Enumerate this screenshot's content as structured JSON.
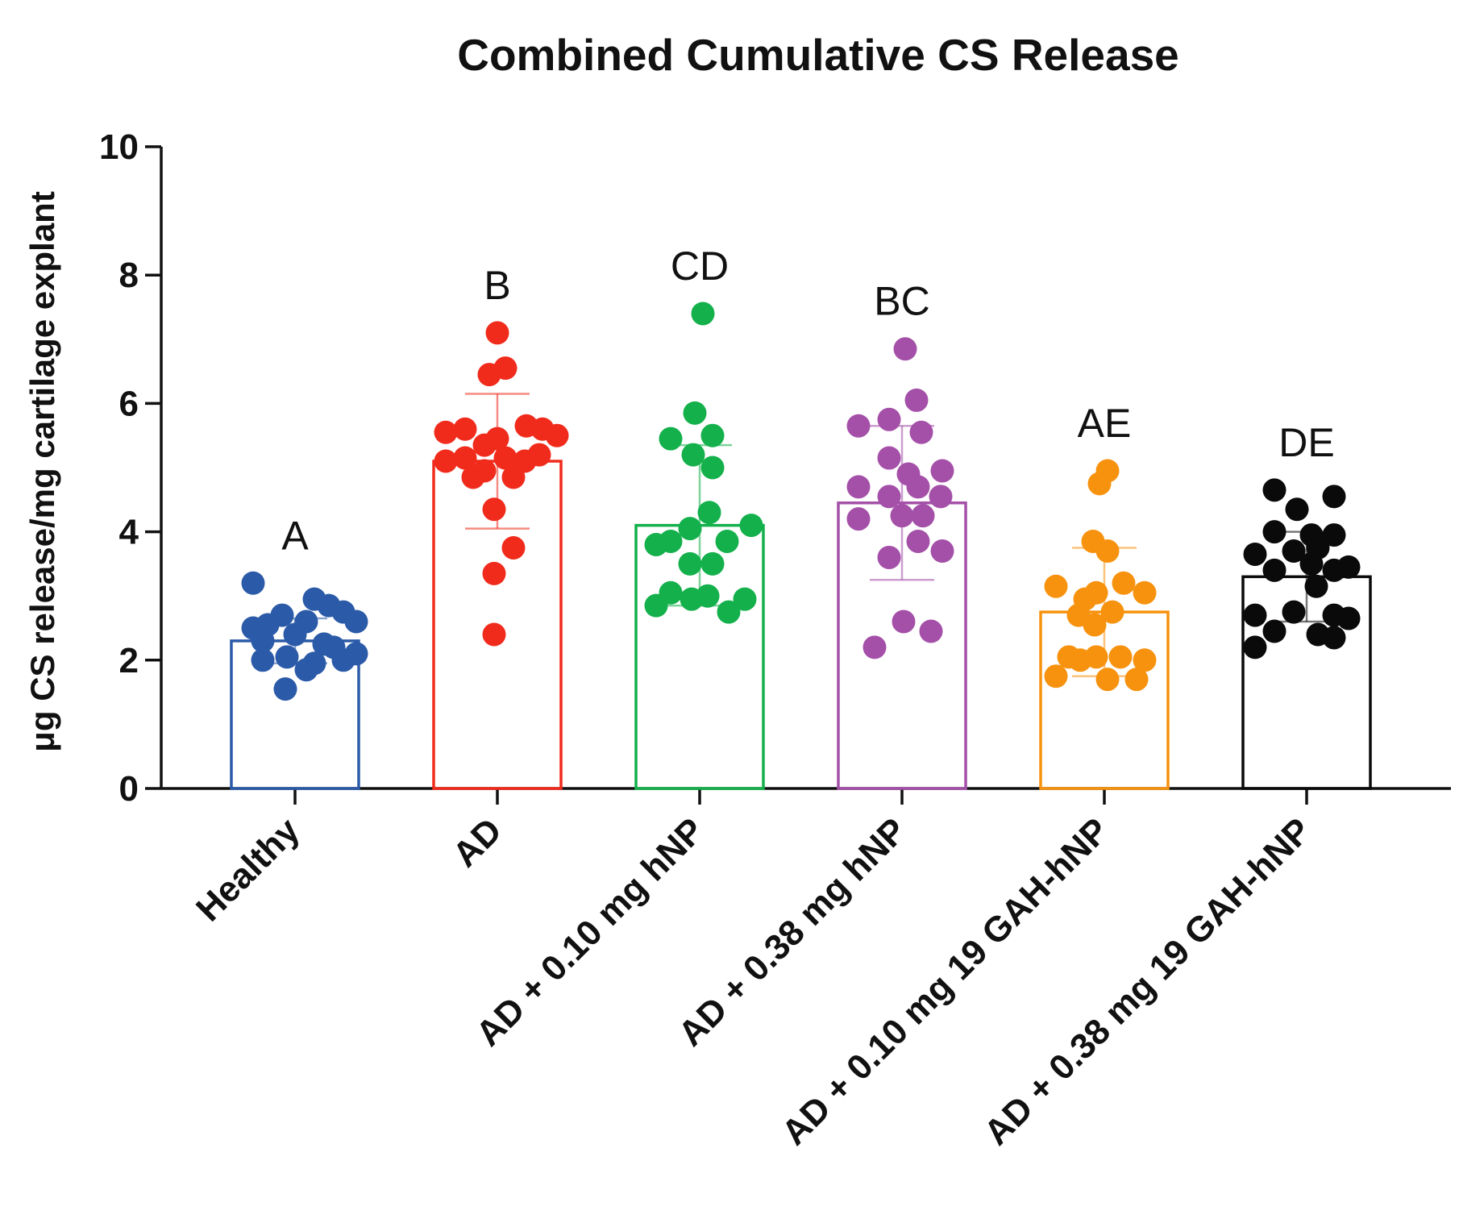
{
  "chart_data": {
    "type": "bar",
    "title": "Combined Cumulative CS Release",
    "xlabel": "",
    "ylabel": "μg CS release/mg cartilage explant",
    "ylim": [
      0,
      10
    ],
    "yticks": [
      0,
      2,
      4,
      6,
      8,
      10
    ],
    "grid": false,
    "legend": "none",
    "categories": [
      "Healthy",
      "AD",
      "AD + 0.10 mg hNP",
      "AD + 0.38 mg hNP",
      "AD + 0.10 mg 19 GAH-hNP",
      "AD + 0.38 mg 19 GAH-hNP"
    ],
    "series": [
      {
        "name": "Healthy",
        "color": "#2b5aa8",
        "mean": 2.3,
        "sd": 0.35,
        "letter": "A",
        "points": [
          {
            "x": -0.26,
            "y": 3.2
          },
          {
            "x": -0.26,
            "y": 2.5
          },
          {
            "x": -0.17,
            "y": 2.55
          },
          {
            "x": -0.08,
            "y": 2.7
          },
          {
            "x": 0.07,
            "y": 2.6
          },
          {
            "x": 0.12,
            "y": 2.95
          },
          {
            "x": 0.21,
            "y": 2.85
          },
          {
            "x": 0.3,
            "y": 2.75
          },
          {
            "x": 0.38,
            "y": 2.6
          },
          {
            "x": -0.2,
            "y": 2.3
          },
          {
            "x": 0.0,
            "y": 2.4
          },
          {
            "x": 0.24,
            "y": 2.2
          },
          {
            "x": -0.2,
            "y": 2.0
          },
          {
            "x": -0.05,
            "y": 2.05
          },
          {
            "x": 0.12,
            "y": 1.95
          },
          {
            "x": 0.3,
            "y": 2.0
          },
          {
            "x": 0.38,
            "y": 2.1
          },
          {
            "x": -0.06,
            "y": 1.55
          },
          {
            "x": 0.07,
            "y": 1.85
          },
          {
            "x": 0.18,
            "y": 2.25
          }
        ]
      },
      {
        "name": "AD",
        "color": "#f02b1c",
        "mean": 5.1,
        "sd": 1.05,
        "letter": "B",
        "points": [
          {
            "x": 0.0,
            "y": 7.1
          },
          {
            "x": -0.05,
            "y": 6.45
          },
          {
            "x": 0.05,
            "y": 6.55
          },
          {
            "x": -0.32,
            "y": 5.55
          },
          {
            "x": -0.2,
            "y": 5.6
          },
          {
            "x": -0.08,
            "y": 5.35
          },
          {
            "x": 0.0,
            "y": 5.45
          },
          {
            "x": 0.18,
            "y": 5.65
          },
          {
            "x": 0.28,
            "y": 5.6
          },
          {
            "x": 0.37,
            "y": 5.5
          },
          {
            "x": -0.32,
            "y": 5.1
          },
          {
            "x": -0.2,
            "y": 5.15
          },
          {
            "x": -0.08,
            "y": 4.95
          },
          {
            "x": 0.05,
            "y": 5.15
          },
          {
            "x": 0.17,
            "y": 5.1
          },
          {
            "x": 0.26,
            "y": 5.2
          },
          {
            "x": -0.15,
            "y": 4.85
          },
          {
            "x": 0.1,
            "y": 4.85
          },
          {
            "x": -0.02,
            "y": 4.35
          },
          {
            "x": 0.1,
            "y": 3.75
          },
          {
            "x": -0.02,
            "y": 3.35
          },
          {
            "x": -0.02,
            "y": 2.4
          }
        ]
      },
      {
        "name": "AD + 0.10 mg hNP",
        "color": "#13b04b",
        "mean": 4.1,
        "sd": 1.25,
        "letter": "CD",
        "points": [
          {
            "x": 0.02,
            "y": 7.4
          },
          {
            "x": -0.03,
            "y": 5.85
          },
          {
            "x": -0.18,
            "y": 5.45
          },
          {
            "x": 0.08,
            "y": 5.5
          },
          {
            "x": -0.04,
            "y": 5.2
          },
          {
            "x": 0.08,
            "y": 5.0
          },
          {
            "x": 0.06,
            "y": 4.3
          },
          {
            "x": 0.32,
            "y": 4.1
          },
          {
            "x": -0.06,
            "y": 4.05
          },
          {
            "x": -0.27,
            "y": 3.8
          },
          {
            "x": -0.18,
            "y": 3.85
          },
          {
            "x": 0.17,
            "y": 3.85
          },
          {
            "x": -0.06,
            "y": 3.5
          },
          {
            "x": 0.08,
            "y": 3.5
          },
          {
            "x": -0.18,
            "y": 3.05
          },
          {
            "x": 0.05,
            "y": 3.0
          },
          {
            "x": 0.28,
            "y": 2.95
          },
          {
            "x": -0.05,
            "y": 2.95
          },
          {
            "x": -0.27,
            "y": 2.85
          },
          {
            "x": 0.18,
            "y": 2.75
          }
        ]
      },
      {
        "name": "AD + 0.38 mg hNP",
        "color": "#a450a8",
        "mean": 4.45,
        "sd": 1.2,
        "letter": "BC",
        "points": [
          {
            "x": 0.02,
            "y": 6.85
          },
          {
            "x": 0.09,
            "y": 6.05
          },
          {
            "x": -0.27,
            "y": 5.65
          },
          {
            "x": -0.08,
            "y": 5.75
          },
          {
            "x": 0.12,
            "y": 5.55
          },
          {
            "x": -0.08,
            "y": 5.15
          },
          {
            "x": 0.04,
            "y": 4.9
          },
          {
            "x": 0.25,
            "y": 4.95
          },
          {
            "x": -0.27,
            "y": 4.7
          },
          {
            "x": -0.08,
            "y": 4.55
          },
          {
            "x": 0.1,
            "y": 4.7
          },
          {
            "x": 0.24,
            "y": 4.55
          },
          {
            "x": -0.27,
            "y": 4.2
          },
          {
            "x": 0.0,
            "y": 4.25
          },
          {
            "x": 0.13,
            "y": 4.25
          },
          {
            "x": 0.1,
            "y": 3.85
          },
          {
            "x": -0.08,
            "y": 3.6
          },
          {
            "x": 0.25,
            "y": 3.7
          },
          {
            "x": 0.01,
            "y": 2.6
          },
          {
            "x": 0.18,
            "y": 2.45
          },
          {
            "x": -0.17,
            "y": 2.2
          }
        ]
      },
      {
        "name": "AD + 0.10 mg 19 GAH-hNP",
        "color": "#f7920e",
        "mean": 2.75,
        "sd": 1.0,
        "letter": "AE",
        "points": [
          {
            "x": -0.03,
            "y": 4.75
          },
          {
            "x": 0.02,
            "y": 4.95
          },
          {
            "x": -0.07,
            "y": 3.85
          },
          {
            "x": 0.02,
            "y": 3.7
          },
          {
            "x": -0.3,
            "y": 3.15
          },
          {
            "x": -0.12,
            "y": 2.95
          },
          {
            "x": -0.05,
            "y": 3.05
          },
          {
            "x": 0.12,
            "y": 3.2
          },
          {
            "x": 0.25,
            "y": 3.05
          },
          {
            "x": -0.16,
            "y": 2.7
          },
          {
            "x": 0.05,
            "y": 2.75
          },
          {
            "x": -0.06,
            "y": 2.55
          },
          {
            "x": -0.22,
            "y": 2.05
          },
          {
            "x": -0.05,
            "y": 2.05
          },
          {
            "x": 0.1,
            "y": 2.05
          },
          {
            "x": 0.25,
            "y": 2.0
          },
          {
            "x": -0.3,
            "y": 1.75
          },
          {
            "x": 0.02,
            "y": 1.7
          },
          {
            "x": 0.2,
            "y": 1.7
          },
          {
            "x": -0.15,
            "y": 2.0
          }
        ]
      },
      {
        "name": "AD + 0.38 mg 19 GAH-hNP",
        "color": "#0a0a0a",
        "mean": 3.3,
        "sd": 0.7,
        "letter": "DE",
        "points": [
          {
            "x": -0.2,
            "y": 4.65
          },
          {
            "x": 0.17,
            "y": 4.55
          },
          {
            "x": -0.06,
            "y": 4.35
          },
          {
            "x": -0.2,
            "y": 4.0
          },
          {
            "x": 0.03,
            "y": 3.95
          },
          {
            "x": 0.17,
            "y": 3.95
          },
          {
            "x": -0.32,
            "y": 3.65
          },
          {
            "x": -0.08,
            "y": 3.7
          },
          {
            "x": 0.07,
            "y": 3.75
          },
          {
            "x": -0.2,
            "y": 3.4
          },
          {
            "x": 0.03,
            "y": 3.5
          },
          {
            "x": 0.17,
            "y": 3.4
          },
          {
            "x": 0.26,
            "y": 3.45
          },
          {
            "x": 0.06,
            "y": 3.15
          },
          {
            "x": -0.32,
            "y": 2.7
          },
          {
            "x": -0.08,
            "y": 2.75
          },
          {
            "x": 0.17,
            "y": 2.7
          },
          {
            "x": 0.26,
            "y": 2.65
          },
          {
            "x": -0.2,
            "y": 2.45
          },
          {
            "x": 0.07,
            "y": 2.4
          },
          {
            "x": -0.32,
            "y": 2.2
          },
          {
            "x": 0.17,
            "y": 2.35
          }
        ]
      }
    ]
  }
}
